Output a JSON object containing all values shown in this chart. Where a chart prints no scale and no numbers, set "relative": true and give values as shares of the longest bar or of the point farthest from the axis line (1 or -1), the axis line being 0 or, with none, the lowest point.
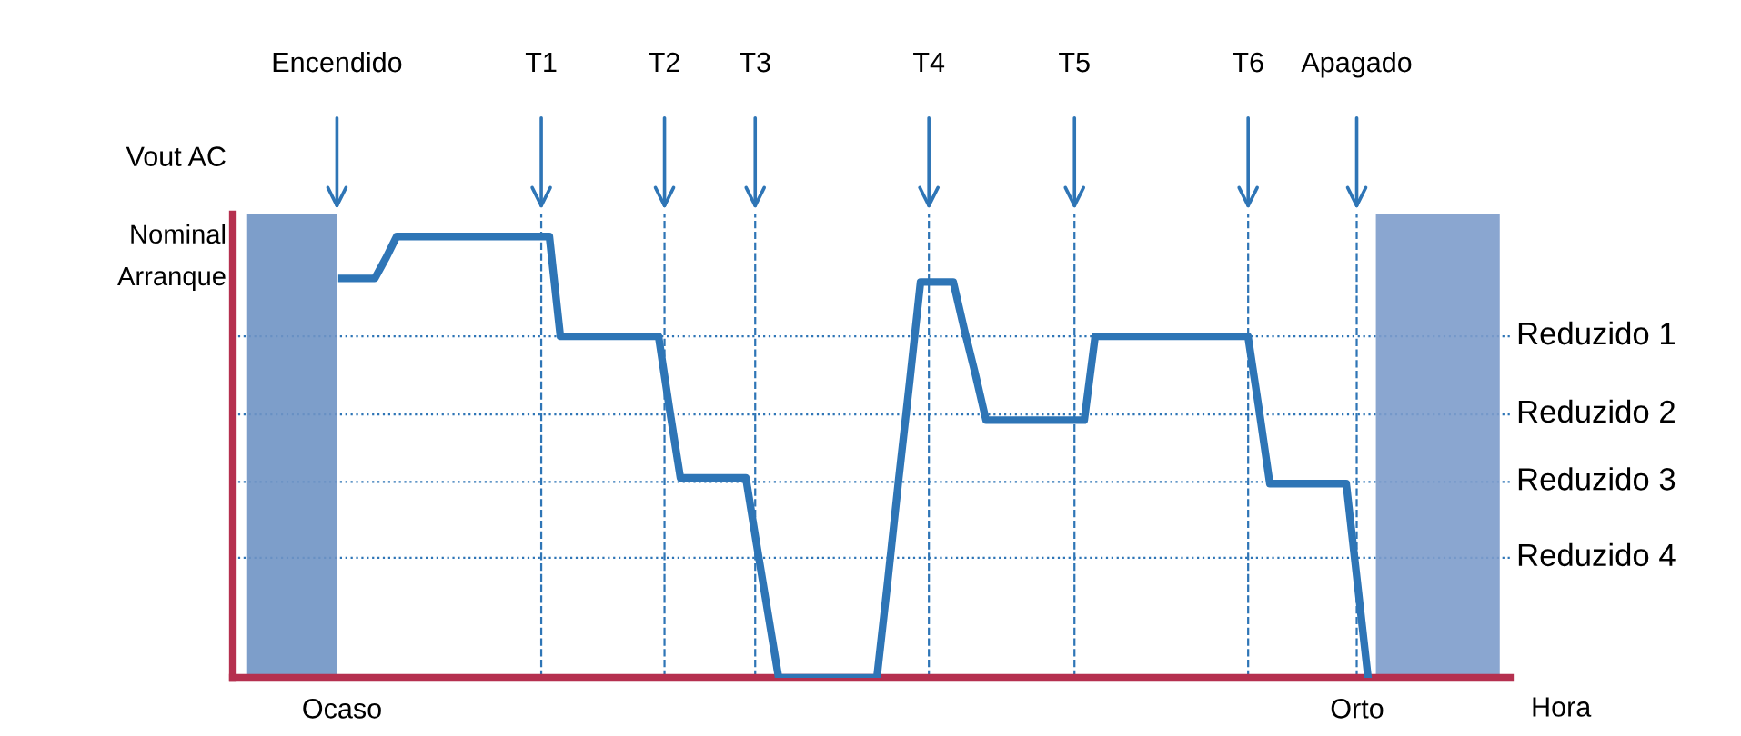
{
  "chart_data": {
    "type": "line",
    "relative": true,
    "tick_labels": "x",
    "marker": "none",
    "line_style": "solid",
    "ylabel": "Vout AC",
    "xlabel": "Hora",
    "categories": [
      null,
      null,
      null,
      null,
      null,
      null,
      null,
      null,
      null,
      null,
      "Ocaso",
      null,
      null,
      null,
      null,
      null,
      null,
      null,
      null,
      null,
      null,
      null,
      null,
      null,
      null,
      null,
      null,
      null,
      null,
      null,
      null,
      null,
      null,
      null,
      null,
      null,
      null,
      null,
      null,
      null,
      null,
      null,
      null,
      null,
      null,
      null,
      null,
      null,
      null,
      null,
      null,
      null,
      null,
      null,
      null,
      null,
      null,
      null,
      null,
      null,
      null,
      null,
      null,
      null,
      null,
      null,
      null,
      null,
      null,
      null,
      null,
      null,
      null,
      null,
      null,
      null,
      null,
      null,
      null,
      null,
      null,
      null,
      null,
      null,
      null,
      null,
      null,
      null,
      null,
      null,
      null,
      null,
      null,
      null,
      null,
      null,
      null,
      null,
      null,
      null,
      null,
      null,
      null,
      "Orto",
      null,
      null,
      null,
      null,
      null,
      null,
      null,
      null,
      null,
      null,
      null,
      null,
      null,
      null
    ],
    "series": [
      {
        "color": "#2e75b6",
        "values": [
          null,
          null,
          null,
          null,
          null,
          null,
          null,
          null,
          null,
          null,
          0.905,
          0.905,
          0.905,
          0.905,
          0.95,
          1,
          1,
          1,
          1,
          1,
          1,
          1,
          1,
          1,
          1,
          1,
          1,
          1,
          1,
          1,
          0.774,
          0.774,
          0.774,
          0.774,
          0.774,
          0.774,
          0.774,
          0.774,
          0.774,
          0.774,
          0.61,
          0.453,
          0.453,
          0.453,
          0.453,
          0.453,
          0.453,
          0.453,
          0.3,
          0.15,
          0,
          0,
          0,
          0,
          0,
          0,
          0,
          0,
          0,
          0,
          0.22,
          0.45,
          0.67,
          0.897,
          0.897,
          0.897,
          0.897,
          0.79,
          0.69,
          0.584,
          0.584,
          0.584,
          0.584,
          0.584,
          0.584,
          0.584,
          0.584,
          0.584,
          0.584,
          0.774,
          0.774,
          0.774,
          0.774,
          0.774,
          0.774,
          0.774,
          0.774,
          0.774,
          0.774,
          0.774,
          0.774,
          0.774,
          0.774,
          0.774,
          0.61,
          0.44,
          0.44,
          0.44,
          0.44,
          0.44,
          0.44,
          0.44,
          0.44,
          0.22,
          0,
          null,
          null,
          null,
          null,
          null,
          null,
          null,
          null,
          null,
          null,
          null,
          null,
          null
        ]
      }
    ],
    "ref_lines": [
      {
        "axis": "y",
        "value": 0.774,
        "label": "Reduzido 1",
        "line_style": "dotted",
        "color": "#2e75b6"
      },
      {
        "axis": "y",
        "value": 0.597,
        "label": "Reduzido 2",
        "line_style": "dotted",
        "color": "#2e75b6"
      },
      {
        "axis": "y",
        "value": 0.444,
        "label": "Reduzido 3",
        "line_style": "dotted",
        "color": "#2e75b6"
      },
      {
        "axis": "y",
        "value": 0.272,
        "label": "Reduzido 4",
        "line_style": "dotted",
        "color": "#2e75b6"
      }
    ],
    "annotations": [
      "Encendido",
      "T1",
      "T2",
      "T3",
      "T4",
      "T5",
      "T6",
      "Apagado",
      "Nominal",
      "Arranque"
    ]
  }
}
